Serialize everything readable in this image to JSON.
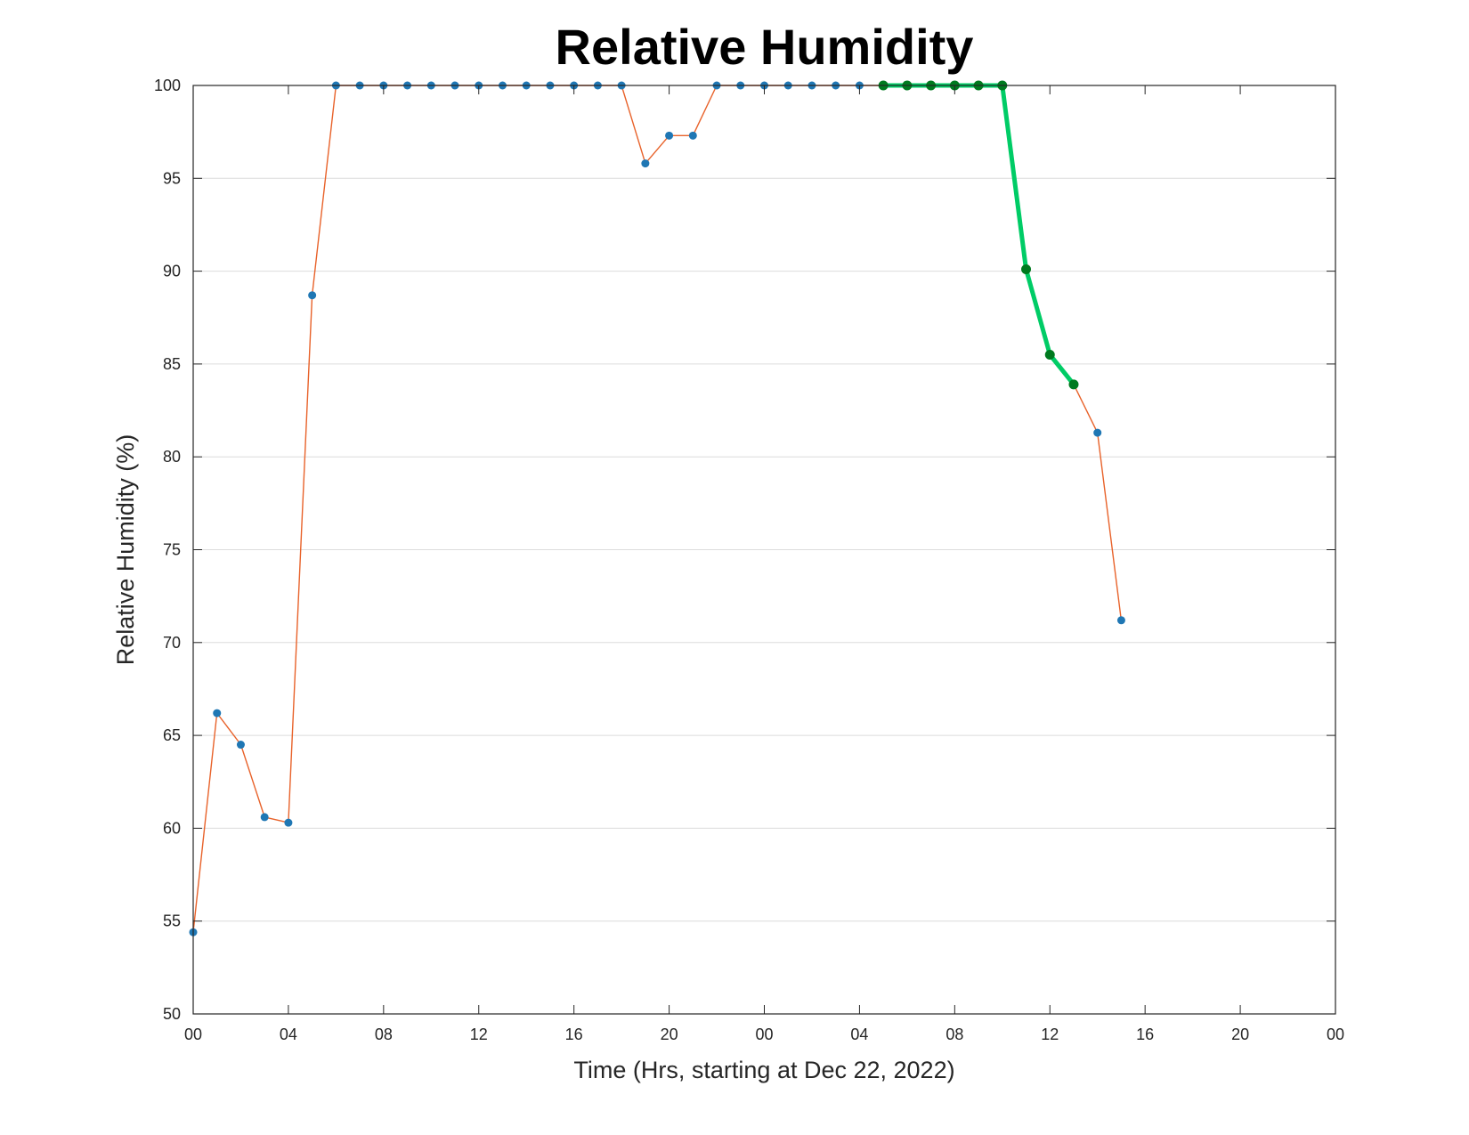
{
  "chart_data": {
    "type": "line",
    "title": "Relative Humidity",
    "xlabel": "Time (Hrs, starting at Dec 22, 2022)",
    "ylabel": "Relative Humidity (%)",
    "xlim": [
      0,
      48
    ],
    "ylim": [
      50,
      100
    ],
    "x_ticks": [
      0,
      4,
      8,
      12,
      16,
      20,
      24,
      28,
      32,
      36,
      40,
      44,
      48
    ],
    "x_tick_labels": [
      "00",
      "04",
      "08",
      "12",
      "16",
      "20",
      "00",
      "04",
      "08",
      "12",
      "16",
      "20",
      "00"
    ],
    "y_ticks": [
      50,
      55,
      60,
      65,
      70,
      75,
      80,
      85,
      90,
      95,
      100
    ],
    "y_tick_labels": [
      "50",
      "55",
      "60",
      "65",
      "70",
      "75",
      "80",
      "85",
      "90",
      "95",
      "100"
    ],
    "grid": "horizontal",
    "series": [
      {
        "color": "#e8622a",
        "marker_color": "#1f77b4",
        "x": [
          0,
          1,
          2,
          3,
          4,
          5,
          6,
          7,
          8,
          9,
          10,
          11,
          12,
          13,
          14,
          15,
          16,
          17,
          18,
          19,
          20,
          21,
          22,
          23,
          24,
          25,
          26,
          27,
          28,
          29,
          30,
          31,
          32,
          33,
          34,
          35,
          36,
          37,
          38,
          39
        ],
        "values": [
          54.4,
          66.2,
          64.5,
          60.6,
          60.3,
          88.7,
          100,
          100,
          100,
          100,
          100,
          100,
          100,
          100,
          100,
          100,
          100,
          100,
          100,
          95.8,
          97.3,
          97.3,
          100,
          100,
          100,
          100,
          100,
          100,
          100,
          100,
          100,
          100,
          100,
          100,
          100,
          90.1,
          85.5,
          83.9,
          81.3,
          71.2
        ]
      },
      {
        "color": "#00cc66",
        "marker_color": "#007a1f",
        "x": [
          29,
          30,
          31,
          32,
          33,
          34,
          35,
          36,
          37
        ],
        "values": [
          100,
          100,
          100,
          100,
          100,
          100,
          90.1,
          85.5,
          83.9
        ]
      }
    ]
  }
}
